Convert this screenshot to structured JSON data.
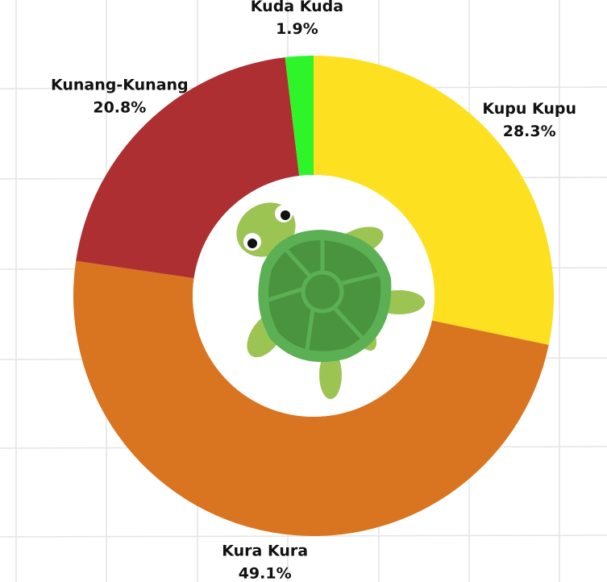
{
  "chart_data": {
    "type": "donut",
    "categories": [
      "Kupu Kupu",
      "Kura Kura",
      "Kunang-Kunang",
      "Kuda Kuda"
    ],
    "values": [
      28.3,
      49.1,
      20.8,
      1.9
    ],
    "value_labels": [
      "28.3%",
      "49.1%",
      "20.8%",
      "1.9%"
    ],
    "colors": [
      "#fde01f",
      "#d97420",
      "#ad2f32",
      "#2ef52a"
    ]
  }
}
